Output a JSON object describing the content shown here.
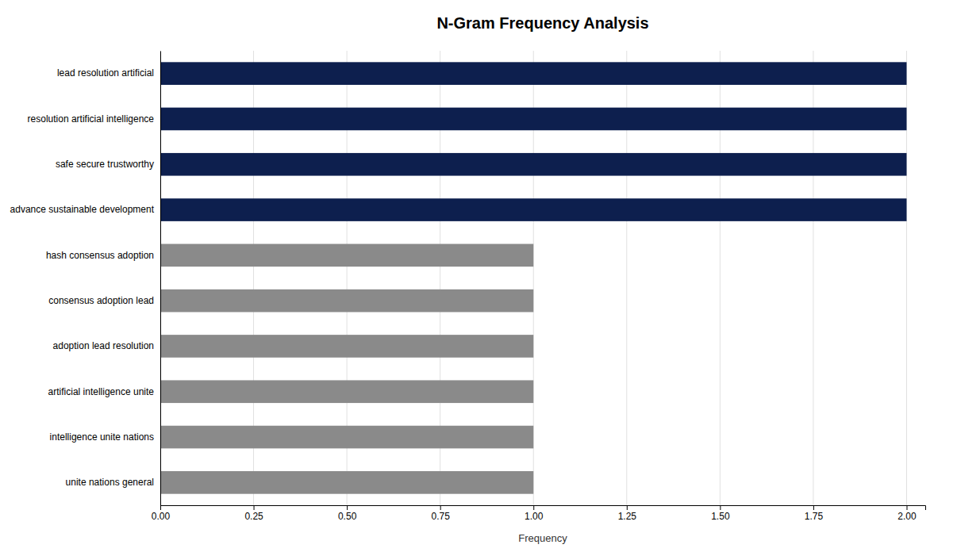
{
  "chart_data": {
    "type": "bar",
    "orientation": "horizontal",
    "title": "N-Gram Frequency Analysis",
    "xlabel": "Frequency",
    "categories": [
      "unite nations general",
      "intelligence unite nations",
      "artificial intelligence unite",
      "adoption lead resolution",
      "consensus adoption lead",
      "hash consensus adoption",
      "advance sustainable development",
      "safe secure trustworthy",
      "resolution artificial intelligence",
      "lead resolution artificial"
    ],
    "values": [
      1,
      1,
      1,
      1,
      1,
      1,
      2,
      2,
      2,
      2
    ],
    "colors": [
      "#8a8a8a",
      "#8a8a8a",
      "#8a8a8a",
      "#8a8a8a",
      "#8a8a8a",
      "#8a8a8a",
      "#0d1f4e",
      "#0d1f4e",
      "#0d1f4e",
      "#0d1f4e"
    ],
    "xlim": [
      0,
      2.05
    ],
    "xticks": [
      {
        "value": 0.0,
        "label": "0.00"
      },
      0.25,
      {
        "value": 0.5,
        "label": "0.50"
      },
      0.75,
      {
        "value": 1.0,
        "label": "1.00"
      },
      1.25,
      {
        "value": 1.5,
        "label": "1.50"
      },
      1.75,
      {
        "value": 2.0,
        "label": "2.00"
      }
    ],
    "grid": true
  }
}
